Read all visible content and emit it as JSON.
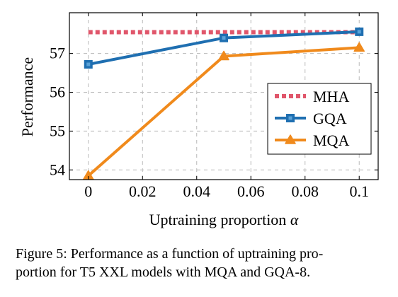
{
  "chart_data": {
    "type": "line",
    "xlabel_text": "Uptraining proportion ",
    "xlabel_symbol": "α",
    "ylabel": "Performance",
    "x": [
      0,
      0.05,
      0.1
    ],
    "xlim": [
      -0.007,
      0.107
    ],
    "ylim": [
      53.75,
      58.05
    ],
    "xticks": [
      0,
      0.02,
      0.04,
      0.06,
      0.08,
      0.1
    ],
    "xtick_labels": [
      "0",
      "0.02",
      "0.04",
      "0.06",
      "0.08",
      "0.1"
    ],
    "yticks": [
      54,
      55,
      56,
      57
    ],
    "ytick_labels": [
      "54",
      "55",
      "56",
      "57"
    ],
    "grid": true,
    "legend_position": "center-right",
    "series": [
      {
        "name": "MHA",
        "values": [
          57.55,
          57.55,
          57.55
        ],
        "color": "#e0566b",
        "style": "dotted",
        "marker": "none"
      },
      {
        "name": "GQA",
        "values": [
          56.72,
          57.4,
          57.56
        ],
        "color": "#1f6fb1",
        "style": "solid",
        "marker": "square"
      },
      {
        "name": "MQA",
        "values": [
          53.85,
          56.93,
          57.15
        ],
        "color": "#f08a1c",
        "style": "solid",
        "marker": "triangle"
      }
    ]
  },
  "caption": {
    "line1": "Figure 5: Performance as a function of uptraining pro-",
    "line2": "portion for T5 XXL models with MQA and GQA-8."
  }
}
